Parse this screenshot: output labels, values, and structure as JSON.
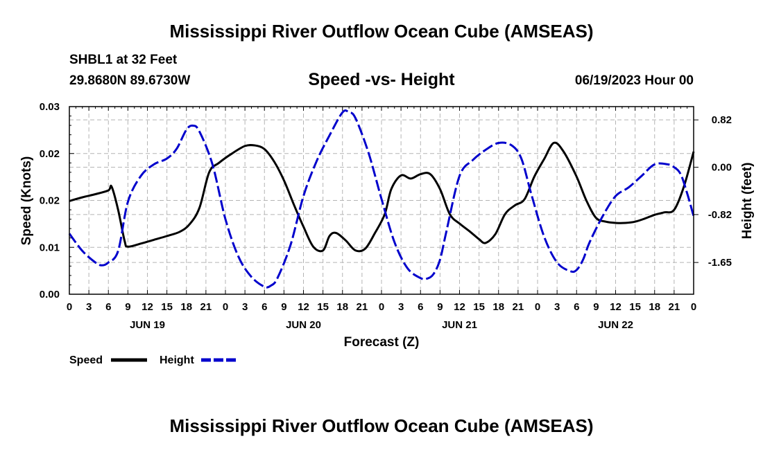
{
  "header": {
    "title": "Mississippi River Outflow Ocean Cube (AMSEAS)",
    "station": "SHBL1 at 32 Feet",
    "location": "29.8680N  89.6730W",
    "datetime": "06/19/2023 Hour 00"
  },
  "footer": {
    "title": "Mississippi River Outflow Ocean Cube (AMSEAS)"
  },
  "colors": {
    "speed": "#000000",
    "height": "#0000cc",
    "grid": "#b4b4b4"
  },
  "chart_data": {
    "type": "line",
    "title": "Speed -vs- Height",
    "xlabel": "Forecast (Z)",
    "ylabel": "Speed (Knots)",
    "y2label": "Height (feet)",
    "xlim": [
      0,
      96
    ],
    "ylim": [
      0,
      0.03
    ],
    "y2lim": [
      -2.2,
      1.05
    ],
    "x_tick_labels": [
      "0",
      "3",
      "6",
      "9",
      "12",
      "15",
      "18",
      "21",
      "0",
      "3",
      "6",
      "9",
      "12",
      "15",
      "18",
      "21",
      "0",
      "3",
      "6",
      "9",
      "12",
      "15",
      "18",
      "21",
      "0",
      "3",
      "6",
      "9",
      "12",
      "15",
      "18",
      "21",
      "0"
    ],
    "day_labels": [
      {
        "x": 12,
        "label": "JUN 19"
      },
      {
        "x": 36,
        "label": "JUN 20"
      },
      {
        "x": 60,
        "label": "JUN 21"
      },
      {
        "x": 84,
        "label": "JUN 22"
      }
    ],
    "y_tick_labels": [
      "0.00",
      "0.01",
      "0.02",
      "0.02",
      "0.03"
    ],
    "y_tick_values": [
      0,
      0.0075,
      0.015,
      0.0225,
      0.03
    ],
    "y2_tick_labels": [
      "-1.65",
      "-0.82",
      "0.00",
      "0.82"
    ],
    "y2_tick_values": [
      -1.65,
      -0.82,
      0,
      0.82
    ],
    "legend": [
      {
        "name": "Speed",
        "style": "solid"
      },
      {
        "name": "Height",
        "style": "dashed"
      }
    ],
    "series": [
      {
        "name": "Speed",
        "axis": "left",
        "x": [
          0,
          2,
          4,
          6,
          6.5,
          7.5,
          8.5,
          9,
          11,
          13,
          15,
          17,
          18.5,
          20,
          21.5,
          23,
          25,
          27,
          28.5,
          30,
          31.5,
          33,
          34.5,
          36,
          37.5,
          39,
          40,
          41,
          42.5,
          44,
          45.5,
          47,
          48.5,
          49.5,
          51,
          52.5,
          54,
          55.5,
          57,
          58.5,
          60,
          61.5,
          63,
          64,
          65.5,
          67,
          68.5,
          70,
          71.5,
          73,
          74.5,
          76,
          78,
          79.5,
          81,
          82.5,
          84,
          85.5,
          87,
          88.5,
          90,
          91.5,
          93,
          94.5,
          96
        ],
        "values": [
          0.0149,
          0.0155,
          0.016,
          0.0166,
          0.0172,
          0.0135,
          0.0085,
          0.0076,
          0.0081,
          0.0087,
          0.0093,
          0.01,
          0.0112,
          0.0138,
          0.0195,
          0.021,
          0.0225,
          0.0237,
          0.0238,
          0.0232,
          0.0212,
          0.0182,
          0.0144,
          0.0108,
          0.0076,
          0.007,
          0.0093,
          0.0098,
          0.0086,
          0.007,
          0.0073,
          0.0098,
          0.0128,
          0.0168,
          0.019,
          0.0185,
          0.0192,
          0.0192,
          0.0168,
          0.0128,
          0.0113,
          0.0101,
          0.0088,
          0.0082,
          0.0096,
          0.0128,
          0.0142,
          0.0152,
          0.0188,
          0.0216,
          0.0242,
          0.0228,
          0.0188,
          0.015,
          0.0122,
          0.0116,
          0.0114,
          0.0114,
          0.0116,
          0.0121,
          0.0127,
          0.0131,
          0.0135,
          0.0172,
          0.0228
        ]
      },
      {
        "name": "Height",
        "axis": "right",
        "x": [
          0,
          2,
          4,
          5,
          6,
          7.5,
          9,
          11,
          13,
          15,
          16.5,
          18,
          19,
          20,
          22,
          24,
          26,
          28,
          30,
          31,
          32,
          34,
          36,
          38,
          40,
          42,
          43,
          44,
          46,
          48,
          50,
          52,
          54,
          55,
          56,
          57,
          58,
          60,
          62,
          64,
          66,
          68,
          69.5,
          71,
          73,
          75,
          77,
          78,
          79,
          80,
          82,
          84,
          86,
          88,
          90,
          92,
          93,
          94,
          95,
          96
        ],
        "values": [
          -1.15,
          -1.45,
          -1.65,
          -1.7,
          -1.65,
          -1.45,
          -0.6,
          -0.15,
          0.05,
          0.15,
          0.32,
          0.65,
          0.72,
          0.62,
          0.05,
          -0.9,
          -1.55,
          -1.9,
          -2.07,
          -2.05,
          -1.92,
          -1.35,
          -0.5,
          0.1,
          0.55,
          0.95,
          0.95,
          0.85,
          0.25,
          -0.55,
          -1.3,
          -1.75,
          -1.92,
          -1.93,
          -1.85,
          -1.6,
          -1.1,
          -0.15,
          0.12,
          0.3,
          0.42,
          0.38,
          0.15,
          -0.45,
          -1.2,
          -1.65,
          -1.8,
          -1.78,
          -1.6,
          -1.3,
          -0.85,
          -0.5,
          -0.35,
          -0.15,
          0.05,
          0.05,
          0.0,
          -0.12,
          -0.45,
          -0.85
        ]
      }
    ]
  }
}
